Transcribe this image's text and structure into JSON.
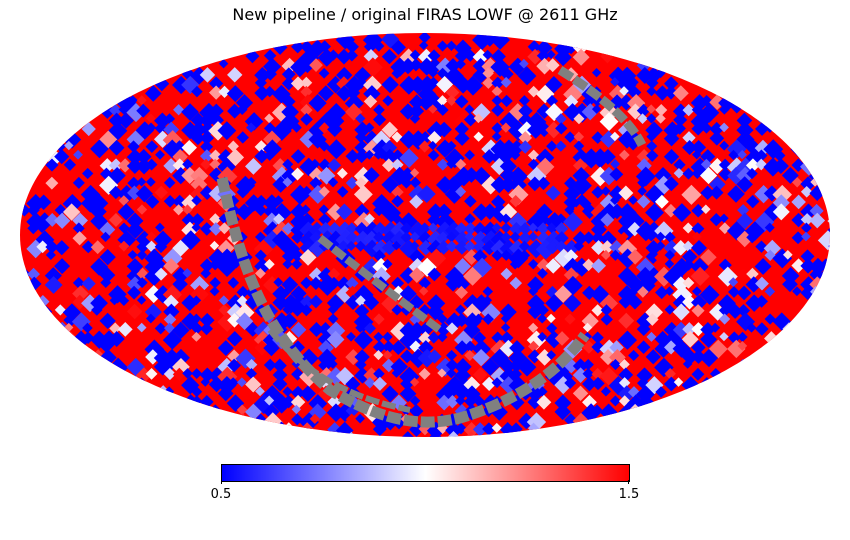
{
  "chart_data": {
    "type": "heatmap",
    "projection": "mollweide",
    "title": "New pipeline / original FIRAS LOWF @ 2611 GHz",
    "colormap": [
      "#0000ff",
      "#ffffff",
      "#ff0000"
    ],
    "masked_color": "#808080",
    "colorbar": {
      "min": 0.5,
      "max": 1.5,
      "min_label": "0.5",
      "max_label": "1.5"
    },
    "value_range": [
      0.5,
      1.5
    ],
    "notes_seed": 7
  }
}
